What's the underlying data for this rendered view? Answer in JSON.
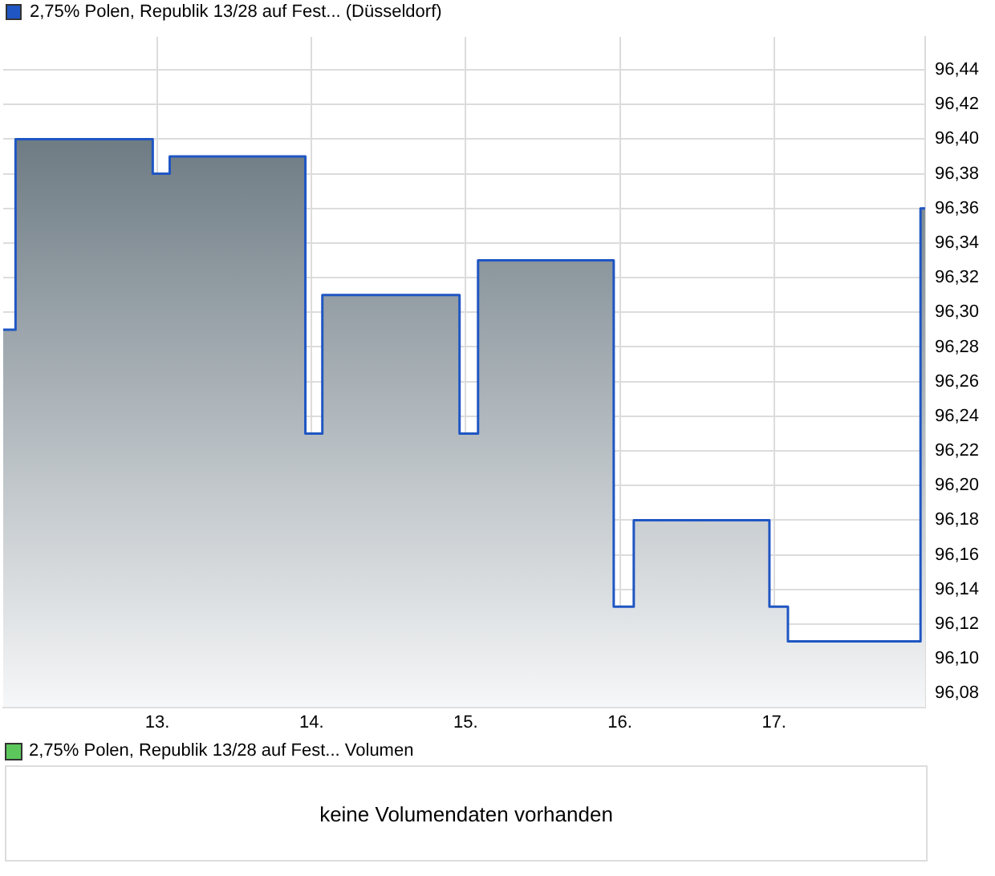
{
  "chart_data": [
    {
      "type": "area",
      "legend": "top left",
      "grid": true,
      "xlim": [
        12.0,
        17.98
      ],
      "xticks": [
        {
          "value": 13,
          "label": "13."
        },
        {
          "value": 14,
          "label": "14."
        },
        {
          "value": 15,
          "label": "15."
        },
        {
          "value": 16,
          "label": "16."
        },
        {
          "value": 17,
          "label": "17."
        }
      ],
      "ylim": [
        96.072,
        96.459
      ],
      "yticks": [
        {
          "value": 96.08,
          "label": "96,08"
        },
        {
          "value": 96.1,
          "label": "96,10"
        },
        {
          "value": 96.12,
          "label": "96,12"
        },
        {
          "value": 96.14,
          "label": "96,14"
        },
        {
          "value": 96.16,
          "label": "96,16"
        },
        {
          "value": 96.18,
          "label": "96,18"
        },
        {
          "value": 96.2,
          "label": "96,20"
        },
        {
          "value": 96.22,
          "label": "96,22"
        },
        {
          "value": 96.24,
          "label": "96,24"
        },
        {
          "value": 96.26,
          "label": "96,26"
        },
        {
          "value": 96.28,
          "label": "96,28"
        },
        {
          "value": 96.3,
          "label": "96,30"
        },
        {
          "value": 96.32,
          "label": "96,32"
        },
        {
          "value": 96.34,
          "label": "96,34"
        },
        {
          "value": 96.36,
          "label": "96,36"
        },
        {
          "value": 96.38,
          "label": "96,38"
        },
        {
          "value": 96.4,
          "label": "96,40"
        },
        {
          "value": 96.42,
          "label": "96,42"
        },
        {
          "value": 96.44,
          "label": "96,44"
        }
      ],
      "series": [
        {
          "name": "2,75% Polen, Republik 13/28 auf Fest... (Düsseldorf)",
          "color": "#1f56c3",
          "x": [
            12.0,
            12.08,
            12.08,
            12.97,
            12.97,
            13.08,
            13.08,
            13.96,
            13.96,
            14.07,
            14.07,
            14.96,
            14.96,
            15.08,
            15.08,
            15.96,
            15.96,
            16.09,
            16.09,
            16.97,
            16.97,
            17.09,
            17.09,
            17.95,
            17.95,
            17.98
          ],
          "values": [
            96.29,
            96.29,
            96.4,
            96.4,
            96.38,
            96.38,
            96.39,
            96.39,
            96.23,
            96.23,
            96.31,
            96.31,
            96.23,
            96.23,
            96.33,
            96.33,
            96.13,
            96.13,
            96.18,
            96.18,
            96.13,
            96.13,
            96.11,
            96.11,
            96.36,
            96.36
          ]
        }
      ]
    },
    {
      "type": "other",
      "legend": "top left",
      "series": [
        {
          "name": "2,75% Polen, Republik 13/28 auf Fest... Volumen",
          "color": "#5cc85c"
        }
      ],
      "annotations": [
        "keine Volumendaten vorhanden"
      ]
    }
  ]
}
